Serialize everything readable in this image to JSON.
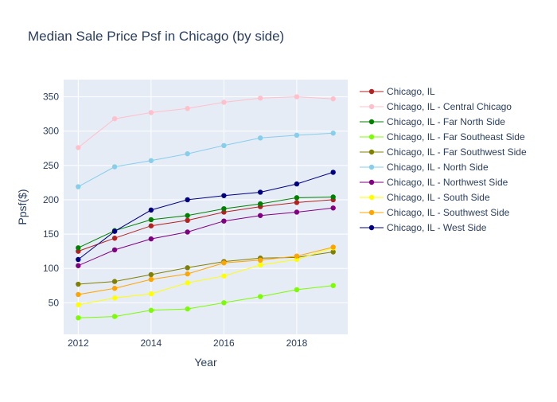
{
  "chart_data": {
    "type": "line",
    "title": "Median Sale Price Psf in Chicago (by side)",
    "xlabel": "Year",
    "ylabel": "Ppsf($)",
    "x": [
      2012,
      2013,
      2014,
      2015,
      2016,
      2017,
      2018,
      2019
    ],
    "xlim": [
      2011.6,
      2019.4
    ],
    "ylim": [
      4,
      375
    ],
    "xticks": [
      2012,
      2014,
      2016,
      2018
    ],
    "yticks": [
      50,
      100,
      150,
      200,
      250,
      300,
      350
    ],
    "grid": true,
    "legend_position": "right",
    "series": [
      {
        "name": "Chicago, IL",
        "color": "#b22222",
        "values": [
          125,
          144,
          162,
          170,
          182,
          190,
          196,
          200
        ]
      },
      {
        "name": "Chicago, IL - Central Chicago",
        "color": "#ffc0cb",
        "values": [
          276,
          318,
          327,
          333,
          342,
          348,
          350,
          347
        ]
      },
      {
        "name": "Chicago, IL - Far North Side",
        "color": "#008000",
        "values": [
          130,
          155,
          171,
          177,
          187,
          194,
          203,
          204
        ]
      },
      {
        "name": "Chicago, IL - Far Southeast Side",
        "color": "#7cfc00",
        "values": [
          28,
          30,
          39,
          41,
          50,
          59,
          69,
          75
        ]
      },
      {
        "name": "Chicago, IL - Far Southwest Side",
        "color": "#808000",
        "values": [
          77,
          81,
          91,
          101,
          110,
          115,
          116,
          124
        ]
      },
      {
        "name": "Chicago, IL - North Side",
        "color": "#87ceeb",
        "values": [
          219,
          248,
          257,
          267,
          279,
          290,
          294,
          297
        ]
      },
      {
        "name": "Chicago, IL - Northwest Side",
        "color": "#800080",
        "values": [
          104,
          127,
          143,
          153,
          169,
          177,
          182,
          188
        ]
      },
      {
        "name": "Chicago, IL - South Side",
        "color": "#ffff00",
        "values": [
          47,
          57,
          63,
          79,
          89,
          105,
          113,
          130
        ]
      },
      {
        "name": "Chicago, IL - Southwest Side",
        "color": "#ffa500",
        "values": [
          62,
          71,
          84,
          92,
          108,
          112,
          118,
          131
        ]
      },
      {
        "name": "Chicago, IL - West Side",
        "color": "#000080",
        "values": [
          113,
          154,
          185,
          200,
          206,
          211,
          223,
          240
        ]
      }
    ]
  }
}
